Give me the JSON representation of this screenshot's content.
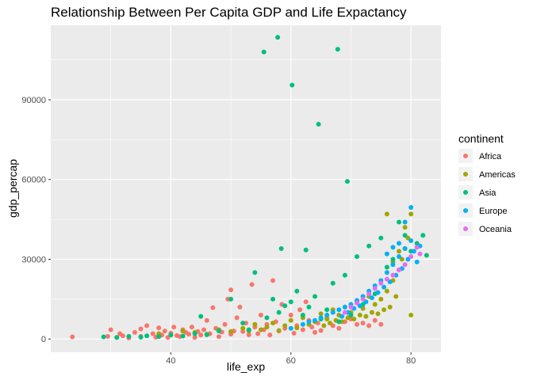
{
  "chart_data": {
    "type": "scatter",
    "title": "Relationship Between Per Capita GDP and Life Expactancy",
    "xlabel": "life_exp",
    "ylabel": "gdp_percap",
    "xlim": [
      20,
      85
    ],
    "ylim": [
      -5000,
      118000
    ],
    "x_ticks": [
      40,
      60,
      80
    ],
    "y_ticks": [
      0,
      30000,
      60000,
      90000
    ],
    "grid": true,
    "legend": {
      "title": "continent",
      "position": "right"
    },
    "colors": {
      "Africa": "#F8766D",
      "Americas": "#A3A500",
      "Asia": "#00BF7D",
      "Europe": "#00B0F6",
      "Oceania": "#E76BF3"
    },
    "series": [
      {
        "name": "Africa",
        "points": [
          [
            23.6,
            800
          ],
          [
            29.5,
            1000
          ],
          [
            30,
            3500
          ],
          [
            31,
            600
          ],
          [
            31.5,
            2000
          ],
          [
            32,
            1200
          ],
          [
            33,
            400
          ],
          [
            34,
            2500
          ],
          [
            35,
            3800
          ],
          [
            35,
            1000
          ],
          [
            36,
            5000
          ],
          [
            37,
            2000
          ],
          [
            37.5,
            700
          ],
          [
            38,
            4200
          ],
          [
            38.5,
            1500
          ],
          [
            39,
            3000
          ],
          [
            39.5,
            600
          ],
          [
            40,
            2200
          ],
          [
            40.5,
            4500
          ],
          [
            41,
            1300
          ],
          [
            41.5,
            900
          ],
          [
            42,
            3500
          ],
          [
            42.5,
            2500
          ],
          [
            43,
            1800
          ],
          [
            43.5,
            4500
          ],
          [
            44,
            600
          ],
          [
            44.5,
            2800
          ],
          [
            45,
            1500
          ],
          [
            45.5,
            3500
          ],
          [
            46,
            7000
          ],
          [
            46.5,
            2000
          ],
          [
            47,
            11800
          ],
          [
            47.5,
            4000
          ],
          [
            48,
            900
          ],
          [
            48.5,
            2600
          ],
          [
            49,
            5500
          ],
          [
            49.5,
            15000
          ],
          [
            50,
            18500
          ],
          [
            50,
            1800
          ],
          [
            50.5,
            3000
          ],
          [
            51,
            8000
          ],
          [
            51.5,
            12000
          ],
          [
            52,
            2800
          ],
          [
            52.5,
            6000
          ],
          [
            53,
            1600
          ],
          [
            53.5,
            20500
          ],
          [
            54,
            4500
          ],
          [
            54.5,
            2000
          ],
          [
            55,
            9000
          ],
          [
            55.5,
            3500
          ],
          [
            56,
            5500
          ],
          [
            56.5,
            1500
          ],
          [
            57,
            22000
          ],
          [
            57.5,
            6500
          ],
          [
            58,
            3000
          ],
          [
            58.5,
            13000
          ],
          [
            59,
            4000
          ],
          [
            60,
            9000
          ],
          [
            60.5,
            2200
          ],
          [
            61,
            5000
          ],
          [
            61.5,
            11000
          ],
          [
            62,
            3500
          ],
          [
            62.5,
            14000
          ],
          [
            63,
            7000
          ],
          [
            63.5,
            4500
          ],
          [
            64,
            2500
          ],
          [
            64.5,
            6000
          ],
          [
            65,
            3200
          ],
          [
            66,
            8000
          ],
          [
            67,
            5000
          ],
          [
            68,
            4000
          ],
          [
            69,
            6500
          ],
          [
            70,
            7500
          ],
          [
            71,
            5500
          ],
          [
            72,
            6000
          ],
          [
            73,
            5000
          ],
          [
            74,
            7000
          ],
          [
            75,
            5500
          ]
        ]
      },
      {
        "name": "Americas",
        "points": [
          [
            38,
            2000
          ],
          [
            40,
            1500
          ],
          [
            42,
            3000
          ],
          [
            44,
            2500
          ],
          [
            46,
            1800
          ],
          [
            48,
            3500
          ],
          [
            50,
            2800
          ],
          [
            52,
            4000
          ],
          [
            53,
            3000
          ],
          [
            54,
            5500
          ],
          [
            55,
            3500
          ],
          [
            56,
            4500
          ],
          [
            57,
            6000
          ],
          [
            58,
            3200
          ],
          [
            59,
            5000
          ],
          [
            60,
            7000
          ],
          [
            61,
            4200
          ],
          [
            62,
            8000
          ],
          [
            63,
            5500
          ],
          [
            64,
            6500
          ],
          [
            65,
            9500
          ],
          [
            65.5,
            5000
          ],
          [
            66,
            7500
          ],
          [
            66.5,
            6000
          ],
          [
            67,
            11000
          ],
          [
            67.5,
            7000
          ],
          [
            68,
            9000
          ],
          [
            68.5,
            6500
          ],
          [
            69,
            12000
          ],
          [
            69.5,
            8000
          ],
          [
            70,
            10000
          ],
          [
            70.5,
            7500
          ],
          [
            71,
            14000
          ],
          [
            71.5,
            9000
          ],
          [
            72,
            11500
          ],
          [
            72.5,
            8500
          ],
          [
            73,
            16000
          ],
          [
            73.5,
            10000
          ],
          [
            74,
            13000
          ],
          [
            74.5,
            9500
          ],
          [
            75,
            15000
          ],
          [
            75.5,
            11000
          ],
          [
            76,
            18000
          ],
          [
            76.5,
            12000
          ],
          [
            77,
            22000
          ],
          [
            77.5,
            16000
          ],
          [
            78,
            26000
          ],
          [
            78.5,
            30000
          ],
          [
            79,
            34000
          ],
          [
            79.5,
            38000
          ],
          [
            76,
            47000
          ],
          [
            78,
            33000
          ],
          [
            77,
            29000
          ],
          [
            80,
            9000
          ],
          [
            79,
            42000
          ],
          [
            80,
            47000
          ]
        ]
      },
      {
        "name": "Asia",
        "points": [
          [
            28.8,
            800
          ],
          [
            31,
            600
          ],
          [
            33,
            1000
          ],
          [
            35,
            700
          ],
          [
            36,
            1200
          ],
          [
            38,
            900
          ],
          [
            40,
            1500
          ],
          [
            42,
            1100
          ],
          [
            44,
            2000
          ],
          [
            45,
            8500
          ],
          [
            46,
            1600
          ],
          [
            48,
            3000
          ],
          [
            50,
            15000
          ],
          [
            52,
            6000
          ],
          [
            53,
            3500
          ],
          [
            54,
            25000
          ],
          [
            55.5,
            108000
          ],
          [
            57.8,
            113500
          ],
          [
            60.2,
            95500
          ],
          [
            64.6,
            80800
          ],
          [
            67.8,
            109000
          ],
          [
            69.4,
            59300
          ],
          [
            58.4,
            34000
          ],
          [
            62.5,
            33500
          ],
          [
            56,
            8000
          ],
          [
            57,
            15000
          ],
          [
            58,
            10000
          ],
          [
            59,
            12500
          ],
          [
            60,
            14000
          ],
          [
            61,
            18000
          ],
          [
            62,
            9000
          ],
          [
            63,
            12000
          ],
          [
            64,
            16000
          ],
          [
            65,
            7500
          ],
          [
            66,
            11000
          ],
          [
            67,
            21000
          ],
          [
            68,
            6500
          ],
          [
            69,
            24000
          ],
          [
            70,
            9000
          ],
          [
            71,
            31000
          ],
          [
            72,
            13000
          ],
          [
            73,
            35000
          ],
          [
            74,
            17000
          ],
          [
            75,
            38000
          ],
          [
            76,
            27000
          ],
          [
            77,
            30000
          ],
          [
            78,
            44000
          ],
          [
            79,
            39000
          ],
          [
            80,
            33000
          ],
          [
            81,
            36000
          ],
          [
            82,
            39000
          ],
          [
            82.6,
            31500
          ]
        ]
      },
      {
        "name": "Europe",
        "points": [
          [
            60,
            4000
          ],
          [
            62,
            5500
          ],
          [
            63,
            6500
          ],
          [
            64,
            7000
          ],
          [
            65,
            8000
          ],
          [
            66,
            9000
          ],
          [
            67,
            10000
          ],
          [
            68,
            11000
          ],
          [
            68.5,
            8500
          ],
          [
            69,
            12000
          ],
          [
            69.5,
            10000
          ],
          [
            70,
            13000
          ],
          [
            70.5,
            11500
          ],
          [
            71,
            14500
          ],
          [
            71.5,
            12500
          ],
          [
            72,
            16000
          ],
          [
            72.5,
            14000
          ],
          [
            73,
            18000
          ],
          [
            73.5,
            15500
          ],
          [
            74,
            20000
          ],
          [
            74.5,
            17500
          ],
          [
            75,
            22000
          ],
          [
            75.5,
            19500
          ],
          [
            76,
            25000
          ],
          [
            76.5,
            21500
          ],
          [
            77,
            28000
          ],
          [
            77.5,
            24000
          ],
          [
            78,
            31000
          ],
          [
            78.5,
            26500
          ],
          [
            79,
            34000
          ],
          [
            79.5,
            30000
          ],
          [
            80,
            37000
          ],
          [
            80.5,
            33000
          ],
          [
            81,
            29000
          ],
          [
            79,
            44000
          ],
          [
            80,
            49500
          ],
          [
            81.5,
            35000
          ],
          [
            76,
            32000
          ],
          [
            77,
            34500
          ],
          [
            78,
            36000
          ]
        ]
      },
      {
        "name": "Oceania",
        "points": [
          [
            69,
            10000
          ],
          [
            70,
            12000
          ],
          [
            71,
            13500
          ],
          [
            72,
            15000
          ],
          [
            73,
            17000
          ],
          [
            74,
            19000
          ],
          [
            75,
            21000
          ],
          [
            76,
            22500
          ],
          [
            77,
            24000
          ],
          [
            78,
            26000
          ],
          [
            79,
            28000
          ],
          [
            80,
            31000
          ],
          [
            81,
            34500
          ],
          [
            81.5,
            32000
          ]
        ]
      }
    ]
  }
}
